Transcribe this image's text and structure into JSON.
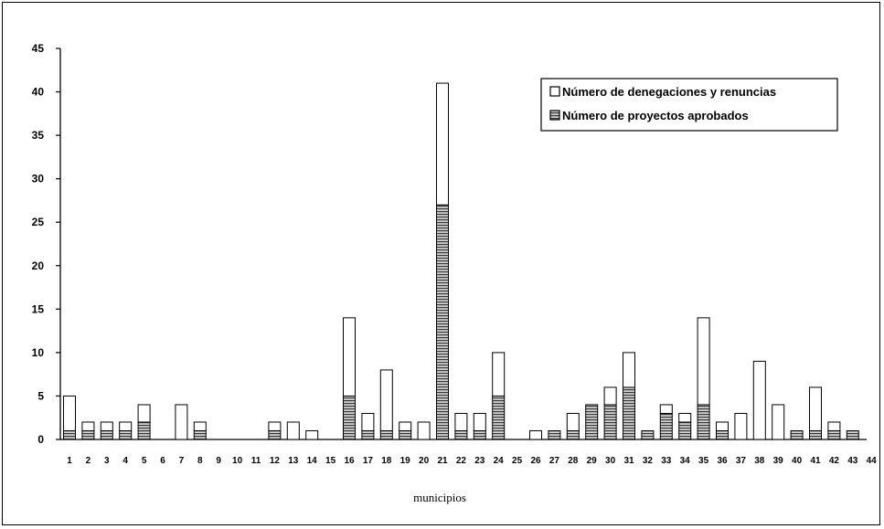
{
  "chart_data": {
    "type": "bar",
    "stacked": true,
    "xlabel": "municipios",
    "ylabel": "",
    "ylim": [
      0,
      45
    ],
    "yticks": [
      0,
      5,
      10,
      15,
      20,
      25,
      30,
      35,
      40,
      45
    ],
    "grid": false,
    "legend_position": "top-right",
    "categories": [
      "1",
      "2",
      "3",
      "4",
      "5",
      "6",
      "7",
      "8",
      "9",
      "10",
      "11",
      "12",
      "13",
      "14",
      "15",
      "16",
      "17",
      "18",
      "19",
      "20",
      "21",
      "22",
      "23",
      "24",
      "25",
      "26",
      "27",
      "28",
      "29",
      "30",
      "31",
      "32",
      "33",
      "34",
      "35",
      "36",
      "37",
      "38",
      "39",
      "40",
      "41",
      "42",
      "43",
      "44"
    ],
    "series": [
      {
        "name": "Número de proyectos aprobados",
        "pattern": "hatched",
        "values": [
          1,
          1,
          1,
          1,
          2,
          0,
          0,
          1,
          0,
          0,
          0,
          1,
          0,
          0,
          0,
          5,
          1,
          1,
          1,
          0,
          27,
          1,
          1,
          5,
          0,
          0,
          1,
          1,
          4,
          4,
          6,
          1,
          3,
          2,
          4,
          1,
          0,
          0,
          0,
          1,
          1,
          1,
          1,
          0
        ]
      },
      {
        "name": "Número de denegaciones y renuncias",
        "pattern": "white",
        "values": [
          4,
          1,
          1,
          1,
          2,
          0,
          4,
          1,
          0,
          0,
          0,
          1,
          2,
          1,
          0,
          9,
          2,
          7,
          1,
          2,
          14,
          2,
          2,
          5,
          0,
          1,
          0,
          2,
          0,
          2,
          4,
          0,
          1,
          1,
          10,
          1,
          3,
          9,
          4,
          0,
          5,
          1,
          0,
          0
        ]
      }
    ]
  }
}
